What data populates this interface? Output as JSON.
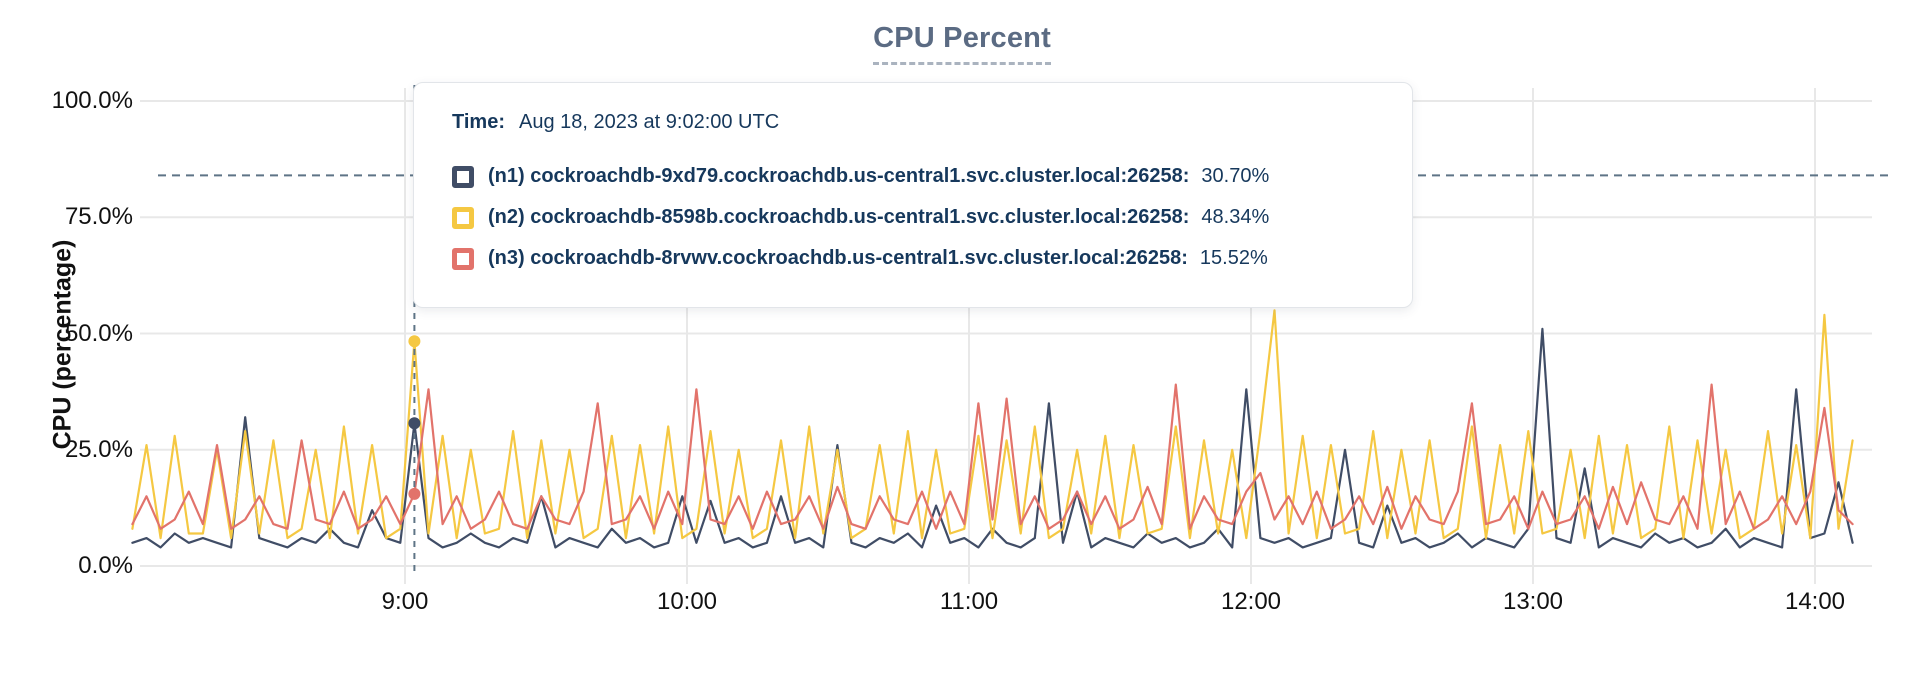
{
  "accent_colors": {
    "n1_navy": "#404D66",
    "n2_yellow": "#F5C842",
    "n3_red": "#E2736B",
    "crosshair": "#5E7486",
    "grid": "#E8E8E8",
    "title_text": "#5B6B83",
    "tooltip_text": "#16385C",
    "axis_text": "#111111"
  },
  "tooltip": {
    "time_label": "Time:",
    "time_value": "Aug 18, 2023 at 9:02:00 UTC",
    "rows": [
      {
        "name": "(n1) cockroachdb-9xd79.cockroachdb.us-central1.svc.cluster.local:26258:",
        "value": "30.70%",
        "percent": 30.7,
        "color": "#404D66"
      },
      {
        "name": "(n2) cockroachdb-8598b.cockroachdb.us-central1.svc.cluster.local:26258:",
        "value": "48.34%",
        "percent": 48.34,
        "color": "#F5C842"
      },
      {
        "name": "(n3) cockroachdb-8rvwv.cockroachdb.us-central1.svc.cluster.local:26258:",
        "value": "15.52%",
        "percent": 15.52,
        "color": "#E2736B"
      }
    ]
  },
  "chart_data": {
    "type": "line",
    "title": "CPU Percent",
    "ylabel": "CPU (percentage)",
    "ylim": [
      0,
      100
    ],
    "grid": true,
    "threshold_percent": 84,
    "crosshair_minutes": 542,
    "x_start_minutes": 482,
    "x_step_minutes": 3,
    "x_end_minutes": 848,
    "y_ticks": [
      {
        "label": "0.0%",
        "value": 0
      },
      {
        "label": "25.0%",
        "value": 25
      },
      {
        "label": "50.0%",
        "value": 50
      },
      {
        "label": "75.0%",
        "value": 75
      },
      {
        "label": "100.0%",
        "value": 100
      }
    ],
    "x_ticks": [
      {
        "label": "9:00",
        "minutes": 540
      },
      {
        "label": "10:00",
        "minutes": 600
      },
      {
        "label": "11:00",
        "minutes": 660
      },
      {
        "label": "12:00",
        "minutes": 720
      },
      {
        "label": "13:00",
        "minutes": 780
      },
      {
        "label": "14:00",
        "minutes": 840
      }
    ],
    "series": [
      {
        "name": "(n1) cockroachdb-9xd79.cockroachdb.us-central1.svc.cluster.local:26258",
        "color": "#404D66",
        "values": [
          5,
          6,
          4,
          7,
          5,
          6,
          5,
          4,
          32,
          6,
          5,
          4,
          6,
          5,
          8,
          5,
          4,
          12,
          6,
          5,
          30.7,
          6,
          4,
          5,
          7,
          5,
          4,
          6,
          5,
          15,
          4,
          6,
          5,
          4,
          8,
          5,
          6,
          4,
          5,
          15,
          5,
          14,
          5,
          6,
          4,
          5,
          15,
          5,
          6,
          4,
          26,
          5,
          4,
          6,
          5,
          7,
          4,
          13,
          5,
          6,
          4,
          8,
          5,
          4,
          6,
          35,
          5,
          16,
          4,
          6,
          5,
          4,
          7,
          5,
          6,
          4,
          5,
          8,
          4,
          38,
          6,
          5,
          6,
          4,
          5,
          6,
          25,
          5,
          4,
          13,
          5,
          6,
          4,
          5,
          7,
          4,
          6,
          5,
          4,
          8,
          51,
          6,
          5,
          21,
          4,
          6,
          5,
          4,
          7,
          5,
          6,
          4,
          5,
          8,
          4,
          6,
          5,
          4,
          38,
          6,
          7,
          18,
          5
        ]
      },
      {
        "name": "(n2) cockroachdb-8598b.cockroachdb.us-central1.svc.cluster.local:26258",
        "color": "#F5C842",
        "values": [
          8,
          26,
          6,
          28,
          7,
          7,
          25,
          6,
          29,
          7,
          27,
          6,
          8,
          25,
          6,
          30,
          7,
          26,
          6,
          8,
          48.34,
          7,
          28,
          6,
          25,
          7,
          8,
          29,
          6,
          27,
          7,
          25,
          6,
          8,
          28,
          6,
          26,
          7,
          30,
          6,
          8,
          29,
          7,
          25,
          6,
          8,
          27,
          6,
          30,
          7,
          25,
          6,
          8,
          26,
          7,
          29,
          6,
          25,
          7,
          8,
          28,
          6,
          27,
          7,
          30,
          6,
          8,
          25,
          7,
          28,
          6,
          26,
          7,
          8,
          30,
          6,
          27,
          7,
          25,
          6,
          29,
          55,
          7,
          28,
          6,
          26,
          7,
          8,
          29,
          6,
          25,
          7,
          27,
          6,
          8,
          30,
          6,
          26,
          7,
          29,
          7,
          8,
          25,
          6,
          28,
          7,
          26,
          6,
          8,
          30,
          6,
          27,
          7,
          25,
          6,
          8,
          29,
          7,
          26,
          6,
          54,
          8,
          27
        ]
      },
      {
        "name": "(n3) cockroachdb-8rvwv.cockroachdb.us-central1.svc.cluster.local:26258",
        "color": "#E2736B",
        "values": [
          9,
          15,
          8,
          10,
          16,
          9,
          26,
          8,
          10,
          15,
          9,
          8,
          27,
          10,
          9,
          16,
          8,
          10,
          15,
          9,
          15.52,
          38,
          9,
          15,
          8,
          10,
          16,
          9,
          8,
          15,
          10,
          9,
          16,
          35,
          9,
          10,
          15,
          8,
          16,
          9,
          38,
          10,
          9,
          15,
          8,
          16,
          9,
          10,
          15,
          8,
          17,
          9,
          8,
          15,
          10,
          9,
          16,
          8,
          16,
          9,
          35,
          10,
          36,
          9,
          15,
          8,
          10,
          16,
          9,
          15,
          8,
          10,
          17,
          9,
          39,
          8,
          15,
          10,
          9,
          16,
          20,
          10,
          15,
          9,
          16,
          8,
          10,
          15,
          9,
          17,
          8,
          15,
          10,
          9,
          16,
          35,
          9,
          10,
          15,
          8,
          16,
          9,
          10,
          15,
          8,
          17,
          9,
          18,
          10,
          9,
          15,
          8,
          39,
          9,
          16,
          8,
          10,
          15,
          9,
          16,
          34,
          12,
          9
        ]
      }
    ]
  }
}
